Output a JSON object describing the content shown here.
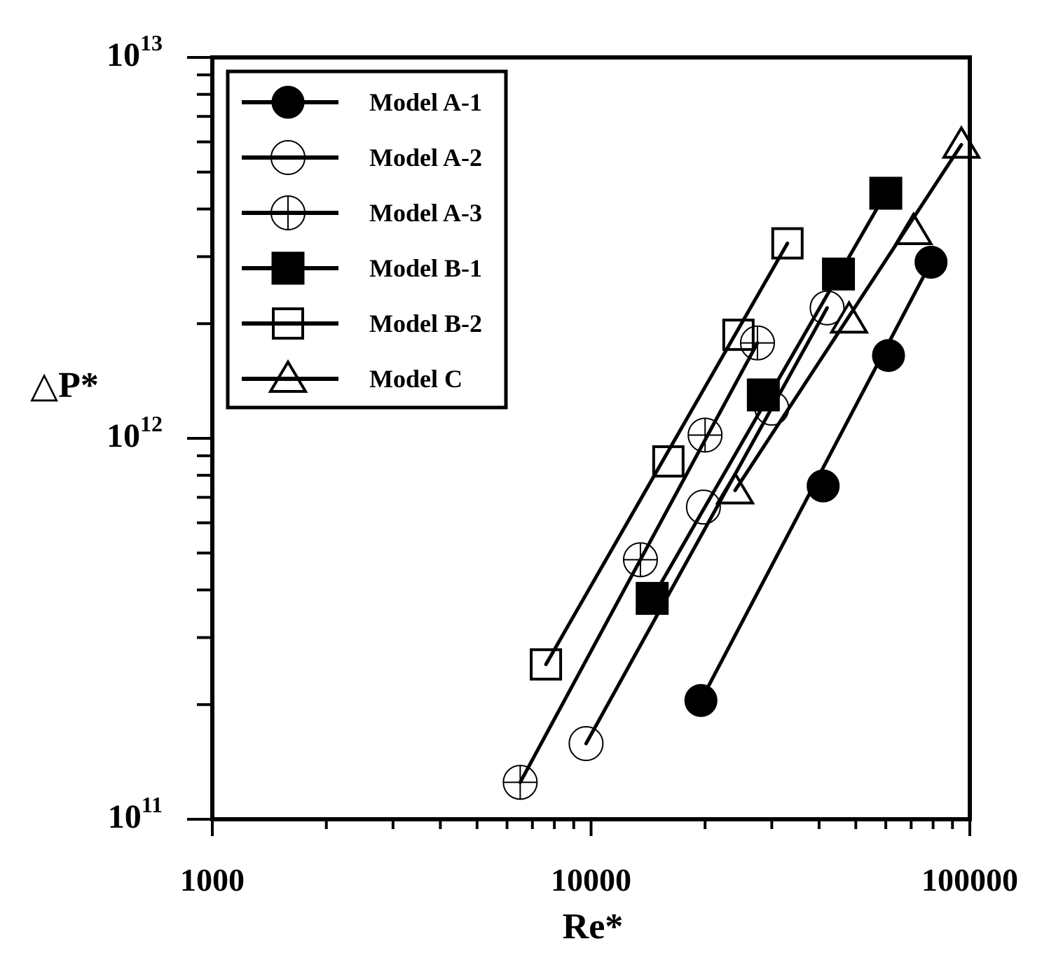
{
  "chart_data": {
    "type": "scatter",
    "xlabel": "Re*",
    "ylabel": "△P*",
    "xscale": "log",
    "yscale": "log",
    "xlim": [
      1000,
      100000
    ],
    "ylim": [
      100000000000,
      10000000000000
    ],
    "x_tick_labels": [
      "1000",
      "10000",
      "100000"
    ],
    "y_tick_labels": [
      {
        "base": "10",
        "exp": "11"
      },
      {
        "base": "10",
        "exp": "12"
      },
      {
        "base": "10",
        "exp": "13"
      }
    ],
    "legend_position": "top-left",
    "grid": false,
    "series": [
      {
        "name": "Model A-1",
        "marker": "filled-circle",
        "x": [
          19500,
          41000,
          61000,
          79000
        ],
        "y": [
          205000000000,
          750000000000,
          1650000000000,
          2900000000000
        ]
      },
      {
        "name": "Model A-2",
        "marker": "open-circle",
        "x": [
          9700,
          19800,
          30000,
          42000
        ],
        "y": [
          158000000000,
          660000000000,
          1200000000000,
          2200000000000
        ]
      },
      {
        "name": "Model A-3",
        "marker": "crossed-circle",
        "x": [
          6500,
          13500,
          20000,
          27500
        ],
        "y": [
          125000000000,
          480000000000,
          1020000000000,
          1780000000000
        ]
      },
      {
        "name": "Model B-1",
        "marker": "filled-square",
        "x": [
          14500,
          28500,
          45000,
          60000
        ],
        "y": [
          380000000000,
          1300000000000,
          2700000000000,
          4400000000000
        ]
      },
      {
        "name": "Model B-2",
        "marker": "open-square",
        "x": [
          7600,
          16000,
          24500,
          33000
        ],
        "y": [
          255000000000,
          870000000000,
          1870000000000,
          3250000000000
        ]
      },
      {
        "name": "Model C",
        "marker": "open-triangle",
        "x": [
          24000,
          48000,
          71000,
          95000
        ],
        "y": [
          730000000000,
          2050000000000,
          3500000000000,
          5900000000000
        ]
      }
    ]
  }
}
